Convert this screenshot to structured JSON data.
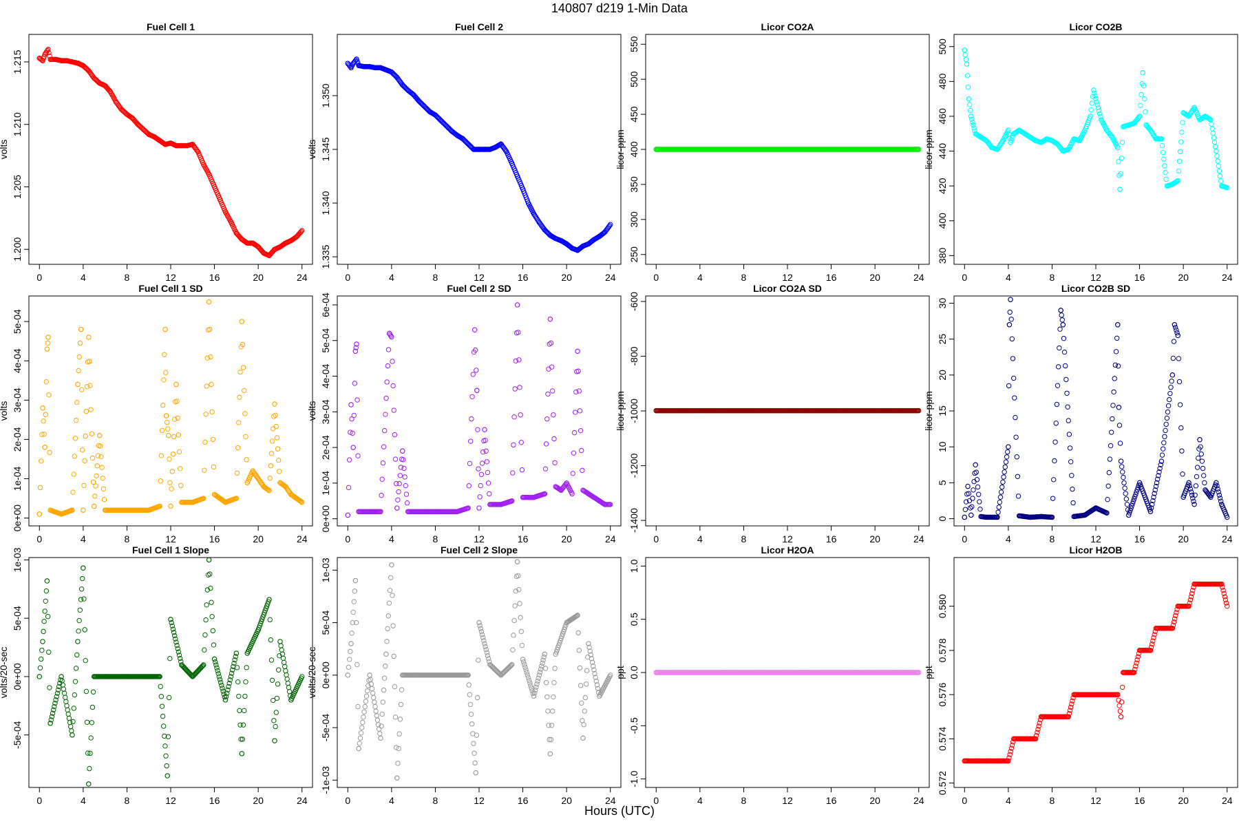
{
  "figure": {
    "title": "140807   d219   1-Min Data",
    "xlabel": "Hours (UTC)"
  },
  "chart_data": [
    {
      "type": "scatter",
      "title": "Fuel Cell 1",
      "ylabel": "volts",
      "color": "#ff0000",
      "xlim": [
        0,
        24
      ],
      "ylim": [
        1.1988,
        1.2172
      ],
      "xticks": [
        0,
        4,
        8,
        12,
        16,
        20,
        24
      ],
      "yticks": [
        1.2,
        1.205,
        1.21,
        1.215
      ],
      "ytick_labels": [
        "1.200",
        "1.205",
        "1.210",
        "1.215"
      ],
      "x": [
        0,
        0.3,
        0.5,
        0.8,
        1,
        1.5,
        2,
        2.5,
        3,
        3.5,
        4,
        4.5,
        5,
        5.5,
        6,
        6.5,
        7,
        7.5,
        8,
        8.5,
        9,
        9.5,
        10,
        10.5,
        11,
        11.5,
        12,
        12.5,
        13,
        13.5,
        14,
        14.5,
        15,
        15.5,
        16,
        16.5,
        17,
        17.5,
        18,
        18.5,
        19,
        19.5,
        20,
        20.5,
        21,
        21.5,
        22,
        22.5,
        23,
        23.5,
        24
      ],
      "y": [
        1.2153,
        1.2151,
        1.2156,
        1.216,
        1.2152,
        1.2152,
        1.2151,
        1.2151,
        1.215,
        1.2149,
        1.2147,
        1.2143,
        1.2137,
        1.2133,
        1.2131,
        1.2126,
        1.2118,
        1.2112,
        1.2108,
        1.2105,
        1.21,
        1.2096,
        1.2092,
        1.209,
        1.2087,
        1.2084,
        1.2085,
        1.2083,
        1.2083,
        1.2083,
        1.2084,
        1.2078,
        1.2068,
        1.206,
        1.205,
        1.204,
        1.203,
        1.2022,
        1.2013,
        1.2008,
        1.2005,
        1.2005,
        1.2002,
        1.1997,
        1.1995,
        1.2,
        1.2002,
        1.2005,
        1.2007,
        1.201,
        1.2015
      ]
    },
    {
      "type": "scatter",
      "title": "Fuel Cell 2",
      "ylabel": "volts",
      "color": "#0000ff",
      "xlim": [
        0,
        24
      ],
      "ylim": [
        1.3343,
        1.3557
      ],
      "xticks": [
        0,
        4,
        8,
        12,
        16,
        20,
        24
      ],
      "yticks": [
        1.335,
        1.34,
        1.345,
        1.35
      ],
      "ytick_labels": [
        "1.335",
        "1.340",
        "1.345",
        "1.350"
      ],
      "x": [
        0,
        0.3,
        0.5,
        0.8,
        1,
        1.5,
        2,
        2.5,
        3,
        3.5,
        4,
        4.5,
        5,
        5.5,
        6,
        6.5,
        7,
        7.5,
        8,
        8.5,
        9,
        9.5,
        10,
        10.5,
        11,
        11.5,
        12,
        12.5,
        13,
        13.5,
        14,
        14.5,
        15,
        15.5,
        16,
        16.5,
        17,
        17.5,
        18,
        18.5,
        19,
        19.5,
        20,
        20.5,
        21,
        21.5,
        22,
        22.5,
        23,
        23.5,
        24
      ],
      "y": [
        1.353,
        1.3526,
        1.353,
        1.3534,
        1.3528,
        1.3527,
        1.3527,
        1.3526,
        1.3526,
        1.3524,
        1.3522,
        1.3517,
        1.351,
        1.3505,
        1.3501,
        1.3495,
        1.349,
        1.3485,
        1.3482,
        1.3477,
        1.3472,
        1.3467,
        1.3463,
        1.346,
        1.3455,
        1.345,
        1.345,
        1.345,
        1.345,
        1.3452,
        1.3455,
        1.3448,
        1.3437,
        1.3425,
        1.3413,
        1.34,
        1.339,
        1.3382,
        1.3375,
        1.337,
        1.3367,
        1.3365,
        1.3362,
        1.3358,
        1.3356,
        1.336,
        1.3362,
        1.3366,
        1.3369,
        1.3373,
        1.338
      ]
    },
    {
      "type": "scatter",
      "title": "Licor CO2A",
      "ylabel": "licor-ppm",
      "color": "#00ee00",
      "xlim": [
        0,
        24
      ],
      "ylim": [
        236,
        564
      ],
      "xticks": [
        0,
        4,
        8,
        12,
        16,
        20,
        24
      ],
      "yticks": [
        250,
        300,
        350,
        400,
        450,
        500,
        550
      ],
      "ytick_labels": [
        "250",
        "300",
        "350",
        "400",
        "450",
        "500",
        "550"
      ],
      "x": [
        0,
        24
      ],
      "y": [
        400,
        400
      ]
    },
    {
      "type": "scatter",
      "title": "Licor CO2B",
      "ylabel": "licor-ppm",
      "color": "#00ffff",
      "xlim": [
        0,
        24
      ],
      "ylim": [
        375,
        507
      ],
      "xticks": [
        0,
        4,
        8,
        12,
        16,
        20,
        24
      ],
      "yticks": [
        380,
        400,
        420,
        440,
        460,
        480,
        500
      ],
      "ytick_labels": [
        "380",
        "400",
        "420",
        "440",
        "460",
        "480",
        "500"
      ],
      "x": [
        0,
        0.2,
        0.4,
        0.6,
        0.8,
        1,
        1.5,
        2,
        2.5,
        3,
        3.5,
        4,
        4.2,
        4.5,
        5,
        5.5,
        6,
        6.5,
        7,
        7.5,
        8,
        8.5,
        9,
        9.5,
        10,
        10.5,
        11,
        11.5,
        11.8,
        12,
        12.5,
        13,
        13.5,
        14,
        14.2,
        14.5,
        15,
        15.5,
        16,
        16.3,
        16.6,
        17,
        17.5,
        18,
        18.5,
        19,
        19.5,
        20,
        20.5,
        21,
        21.5,
        22,
        22.5,
        23,
        23.5,
        24
      ],
      "y": [
        498,
        490,
        470,
        460,
        455,
        450,
        448,
        446,
        442,
        441,
        446,
        452,
        445,
        450,
        452,
        450,
        448,
        446,
        445,
        447,
        446,
        444,
        440,
        441,
        447,
        446,
        452,
        460,
        475,
        470,
        458,
        452,
        448,
        442,
        418,
        454,
        455,
        456,
        460,
        485,
        455,
        452,
        447,
        447,
        420,
        421,
        423,
        462,
        460,
        465,
        458,
        460,
        458,
        440,
        420,
        419
      ]
    },
    {
      "type": "scatter",
      "title": "Fuel Cell 1 SD",
      "ylabel": "volts",
      "color": "#ffa500",
      "xlim": [
        0,
        24
      ],
      "ylim": [
        -2e-05,
        0.000565
      ],
      "xticks": [
        0,
        4,
        8,
        12,
        16,
        20,
        24
      ],
      "yticks": [
        0,
        0.0001,
        0.0002,
        0.0003,
        0.0004,
        0.0005
      ],
      "ytick_labels": [
        "0e+00",
        "1e-04",
        "2e-04",
        "3e-04",
        "4e-04",
        "5e-04"
      ],
      "x": [
        0,
        0.3,
        0.5,
        0.7,
        0.8,
        1,
        2,
        3,
        3.5,
        3.8,
        4,
        4.5,
        5,
        5.5,
        6,
        7,
        8,
        9,
        10,
        11,
        11.5,
        11.6,
        11.8,
        12,
        12.5,
        13,
        14,
        15,
        15.5,
        16,
        17,
        18,
        18.5,
        19,
        19.5,
        20,
        20.5,
        21,
        21.5,
        22,
        22.5,
        23,
        23.5,
        24
      ],
      "y": [
        1e-05,
        0.00028,
        0.00018,
        0.00043,
        0.00046,
        2e-05,
        1e-05,
        2e-05,
        0.00034,
        0.00048,
        2e-05,
        0.00046,
        3e-05,
        0.00021,
        2e-05,
        2e-05,
        2e-05,
        2e-05,
        2e-05,
        3e-05,
        0.00048,
        0.00026,
        0.00021,
        3e-05,
        0.00034,
        4e-05,
        4e-05,
        5e-05,
        0.00055,
        6e-05,
        4e-05,
        5e-05,
        0.0005,
        9e-05,
        0.00012,
        0.0001,
        8e-05,
        7e-05,
        0.00029,
        9e-05,
        8e-05,
        6e-05,
        5e-05,
        4e-05
      ]
    },
    {
      "type": "scatter",
      "title": "Fuel Cell 2 SD",
      "ylabel": "volts",
      "color": "#a020f0",
      "xlim": [
        0,
        24
      ],
      "ylim": [
        -2e-05,
        0.000625
      ],
      "xticks": [
        0,
        4,
        8,
        12,
        16,
        20,
        24
      ],
      "yticks": [
        0,
        0.0001,
        0.0002,
        0.0003,
        0.0004,
        0.0005,
        0.0006
      ],
      "ytick_labels": [
        "0e+00",
        "1e-04",
        "2e-04",
        "3e-04",
        "4e-04",
        "5e-04",
        "6e-04"
      ],
      "x": [
        0,
        0.3,
        0.5,
        0.7,
        0.8,
        1,
        2,
        3,
        3.8,
        4,
        4.5,
        5,
        5.5,
        6,
        7,
        8,
        9,
        10,
        11,
        11.6,
        11.8,
        12,
        12.5,
        13,
        14,
        15,
        15.5,
        16,
        17,
        18,
        18.5,
        19,
        19.5,
        20,
        20.5,
        21,
        21.5,
        22,
        22.5,
        23,
        23.5,
        24
      ],
      "y": [
        1e-05,
        0.00032,
        0.0002,
        0.00047,
        0.00049,
        2e-05,
        2e-05,
        2e-05,
        0.00052,
        0.00051,
        3e-05,
        0.00019,
        2e-05,
        2e-05,
        2e-05,
        2e-05,
        2e-05,
        2e-05,
        3e-05,
        0.00053,
        0.00036,
        3e-05,
        0.00025,
        4e-05,
        4e-05,
        5e-05,
        0.0006,
        6e-05,
        6e-05,
        7e-05,
        0.00056,
        9e-05,
        8e-05,
        0.0001,
        7e-05,
        0.00047,
        8e-05,
        7e-05,
        6e-05,
        5e-05,
        4e-05,
        4e-05
      ]
    },
    {
      "type": "scatter",
      "title": "Licor CO2A SD",
      "ylabel": "licor-ppm",
      "color": "#8b0000",
      "xlim": [
        0,
        24
      ],
      "ylim": [
        -1420,
        -580
      ],
      "xticks": [
        0,
        4,
        8,
        12,
        16,
        20,
        24
      ],
      "yticks": [
        -1400,
        -1200,
        -1000,
        -800,
        -600
      ],
      "ytick_labels": [
        "-1400",
        "-1200",
        "-1000",
        "-800",
        "-600"
      ],
      "x": [
        0,
        24
      ],
      "y": [
        -999,
        -999
      ]
    },
    {
      "type": "scatter",
      "title": "Licor CO2B SD",
      "ylabel": "licor-ppm",
      "color": "#000080",
      "xlim": [
        0,
        24
      ],
      "ylim": [
        -1,
        31
      ],
      "xticks": [
        0,
        4,
        8,
        12,
        16,
        20,
        24
      ],
      "yticks": [
        0,
        5,
        10,
        15,
        20,
        25,
        30
      ],
      "ytick_labels": [
        "0",
        "5",
        "10",
        "15",
        "20",
        "25",
        "30"
      ],
      "x": [
        0,
        0.3,
        0.6,
        1,
        1.5,
        2,
        3,
        4,
        4.1,
        4.2,
        5,
        6,
        7,
        8,
        8.8,
        9,
        10,
        11,
        12,
        13,
        14,
        14.1,
        14.3,
        15,
        16,
        17,
        18,
        19,
        19.2,
        19.5,
        20,
        20.5,
        21,
        21.5,
        22,
        22.5,
        23,
        23.5,
        24
      ],
      "y": [
        0.2,
        4.5,
        0.5,
        7.5,
        0.3,
        0.2,
        0.2,
        10,
        27,
        30.5,
        0.4,
        0.2,
        0.3,
        0.2,
        29,
        27,
        0.3,
        0.5,
        1.5,
        0.8,
        27,
        15.5,
        8,
        0.5,
        5,
        1,
        8,
        20,
        27,
        25.5,
        3,
        5,
        2,
        11,
        4,
        3,
        5,
        2,
        0.2
      ]
    },
    {
      "type": "scatter",
      "title": "Fuel Cell 1 Slope",
      "ylabel": "volts/20-sec",
      "color": "#006400",
      "xlim": [
        0,
        24
      ],
      "ylim": [
        -0.00095,
        0.00102
      ],
      "xticks": [
        0,
        4,
        8,
        12,
        16,
        20,
        24
      ],
      "yticks": [
        -0.0005,
        0,
        0.0005,
        0.001
      ],
      "ytick_labels": [
        "-5e-04",
        "0e+00",
        "5e-04",
        "1e-03"
      ],
      "x": [
        0,
        0.3,
        0.7,
        1,
        2,
        3,
        3.5,
        4,
        4.5,
        5,
        6,
        8,
        10,
        11,
        11.7,
        12,
        13,
        14,
        15,
        15.5,
        16,
        17,
        18,
        18.5,
        19,
        20,
        21,
        21.5,
        22,
        23,
        24
      ],
      "y": [
        0,
        0.0003,
        0.00082,
        -0.0004,
        0,
        -0.0005,
        0.0003,
        0.00093,
        -0.00092,
        0,
        0,
        0,
        0,
        0,
        -0.00085,
        0.00049,
        0.0001,
        0,
        0.0001,
        0.001,
        0.00015,
        -0.0002,
        0.0002,
        -0.00066,
        0.0002,
        0.0004,
        0.00066,
        -0.00055,
        0.0003,
        -0.0002,
        0
      ]
    },
    {
      "type": "scatter",
      "title": "Fuel Cell 2 Slope",
      "ylabel": "volts/20-sec",
      "color": "#999999",
      "xlim": [
        0,
        24
      ],
      "ylim": [
        -0.00107,
        0.00112
      ],
      "xticks": [
        0,
        4,
        8,
        12,
        16,
        20,
        24
      ],
      "yticks": [
        -0.001,
        -0.0005,
        0,
        0.0005,
        0.001
      ],
      "ytick_labels": [
        "-1e-03",
        "-5e-04",
        "0e+00",
        "5e-04",
        "1e-03"
      ],
      "x": [
        0,
        0.3,
        0.7,
        1,
        2,
        3,
        3.5,
        4,
        4.5,
        5,
        6,
        8,
        10,
        11,
        11.7,
        12,
        13,
        14,
        15,
        15.5,
        16,
        17,
        18,
        18.5,
        19,
        20,
        21,
        21.5,
        22,
        23,
        24
      ],
      "y": [
        0,
        0.0003,
        0.0009,
        -0.0007,
        0,
        -0.0006,
        0.0002,
        0.00105,
        -0.00098,
        0,
        0,
        0,
        0,
        0,
        -0.00093,
        0.0005,
        0.0001,
        0,
        0.0001,
        0.00108,
        0.00015,
        -0.0002,
        0.0002,
        -0.00075,
        0.0002,
        0.0005,
        0.00057,
        -0.0006,
        0.0003,
        -0.0002,
        0
      ]
    },
    {
      "type": "scatter",
      "title": "Licor H2OA",
      "ylabel": "ppt",
      "color": "#ee82ee",
      "xlim": [
        0,
        24
      ],
      "ylim": [
        -1.08,
        1.08
      ],
      "xticks": [
        0,
        4,
        8,
        12,
        16,
        20,
        24
      ],
      "yticks": [
        -1,
        -0.5,
        0,
        0.5,
        1
      ],
      "ytick_labels": [
        "-1.0",
        "-0.5",
        "0.0",
        "0.5",
        "1.0"
      ],
      "x": [
        0,
        24
      ],
      "y": [
        0,
        0
      ]
    },
    {
      "type": "scatter",
      "title": "Licor H2OB",
      "ylabel": "ppt",
      "color": "#ff0000",
      "xlim": [
        0,
        24
      ],
      "ylim": [
        0.5718,
        0.5822
      ],
      "xticks": [
        0,
        4,
        8,
        12,
        16,
        20,
        24
      ],
      "yticks": [
        0.572,
        0.574,
        0.576,
        0.578,
        0.58
      ],
      "ytick_labels": [
        "0.572",
        "0.574",
        "0.576",
        "0.578",
        "0.580"
      ],
      "x": [
        0,
        1,
        2,
        3,
        4,
        4.5,
        5,
        5.5,
        6,
        6.5,
        7,
        8,
        9,
        9.5,
        10,
        11,
        12,
        12.5,
        13,
        14,
        14.3,
        14.5,
        15,
        15.5,
        16,
        16.5,
        17,
        17.5,
        18,
        18.5,
        19,
        19.5,
        20,
        20.5,
        21,
        22,
        23,
        23.5,
        24
      ],
      "y": [
        0.573,
        0.573,
        0.573,
        0.573,
        0.573,
        0.574,
        0.574,
        0.574,
        0.574,
        0.574,
        0.575,
        0.575,
        0.575,
        0.575,
        0.576,
        0.576,
        0.576,
        0.576,
        0.576,
        0.576,
        0.575,
        0.577,
        0.577,
        0.577,
        0.578,
        0.578,
        0.578,
        0.579,
        0.579,
        0.579,
        0.579,
        0.58,
        0.58,
        0.58,
        0.581,
        0.581,
        0.581,
        0.581,
        0.58
      ]
    }
  ]
}
